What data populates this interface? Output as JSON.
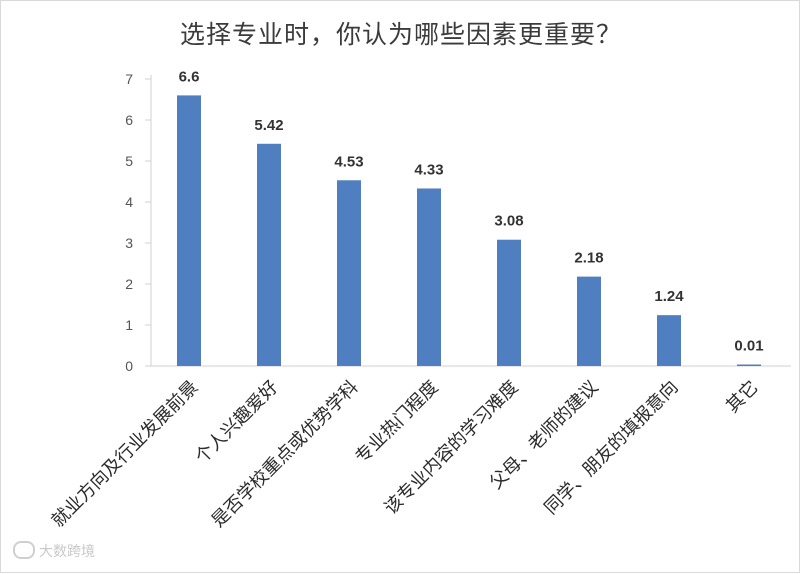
{
  "chart_data": {
    "type": "bar",
    "title": "选择专业时，你认为哪些因素更重要？",
    "categories": [
      "就业方向及行业发展前景",
      "个人兴趣爱好",
      "是否学校重点或优势学科",
      "专业热门程度",
      "该专业内容的学习难度",
      "父母、老师的建议",
      "同学、朋友的填报意向",
      "其它"
    ],
    "values": [
      6.6,
      5.42,
      4.53,
      4.33,
      3.08,
      2.18,
      1.24,
      0.01
    ],
    "value_labels": [
      "6.6",
      "5.42",
      "4.53",
      "4.33",
      "3.08",
      "2.18",
      "1.24",
      "0.01"
    ],
    "ylim": [
      0,
      7
    ],
    "y_ticks": [
      "0",
      "1",
      "2",
      "3",
      "4",
      "5",
      "6",
      "7"
    ],
    "grid": false,
    "bar_color": "#4f7fc0",
    "xlabel": "",
    "ylabel": ""
  },
  "watermark": {
    "text": "大数跨境"
  }
}
